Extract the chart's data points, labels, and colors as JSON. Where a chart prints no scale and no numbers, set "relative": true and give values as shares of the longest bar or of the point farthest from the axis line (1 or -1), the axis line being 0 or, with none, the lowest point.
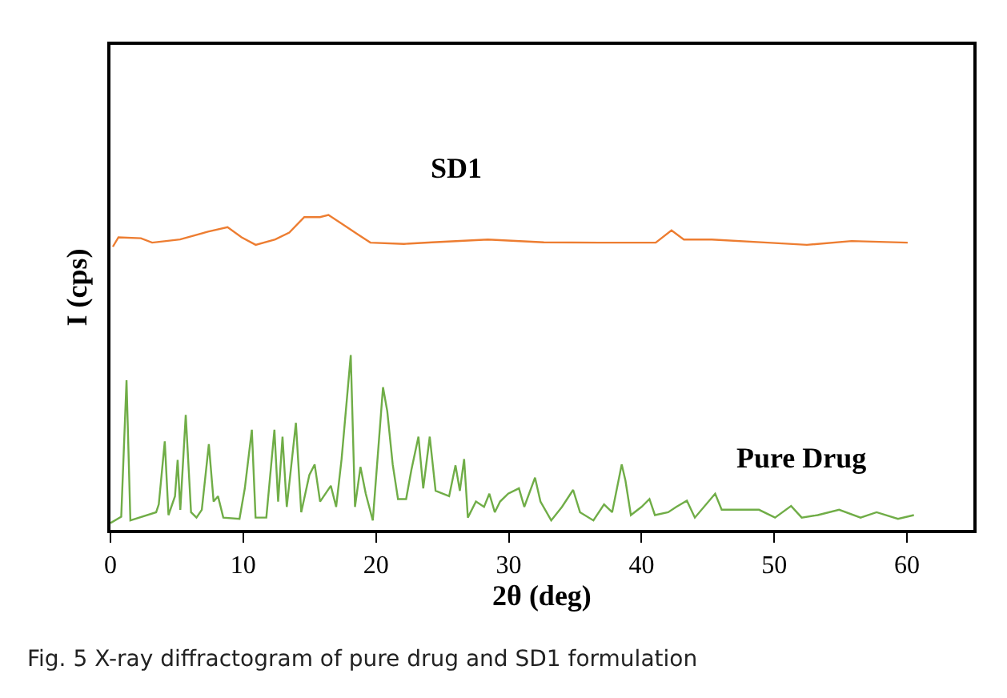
{
  "chart_data": {
    "type": "line",
    "relative": true,
    "xlabel": "2θ (deg)",
    "ylabel": "I (cps)",
    "xlim": [
      0,
      65
    ],
    "xticks": [
      0,
      10,
      20,
      30,
      40,
      50,
      60
    ],
    "tick_labels": "x",
    "legend": false,
    "marker": "none",
    "line_style": "solid",
    "annotations": [
      "Fig. 5 X-ray diffractogram of pure drug and SD1 formulation"
    ],
    "series": [
      {
        "name": "SD1",
        "color": "#ed7d31",
        "x": [
          0.18,
          0.6,
          2.29,
          3.14,
          5.24,
          7.35,
          8.82,
          9.88,
          10.94,
          12.41,
          13.47,
          14.6,
          15.78,
          16.42,
          17.47,
          18.74,
          19.58,
          22.11,
          24.22,
          28.43,
          32.64,
          36.86,
          41.07,
          42.26,
          43.19,
          45.29,
          49.51,
          52.46,
          55.83,
          60.05
        ],
        "values": [
          0.899,
          0.929,
          0.926,
          0.912,
          0.922,
          0.947,
          0.961,
          0.929,
          0.905,
          0.922,
          0.944,
          0.993,
          0.993,
          1.0,
          0.971,
          0.935,
          0.912,
          0.908,
          0.913,
          0.922,
          0.913,
          0.912,
          0.912,
          0.951,
          0.922,
          0.922,
          0.912,
          0.905,
          0.917,
          0.912
        ]
      },
      {
        "name": "Pure Drug",
        "color": "#70ad47",
        "x": [
          0,
          0.81,
          1.21,
          1.5,
          3.44,
          3.64,
          4.09,
          4.37,
          4.86,
          5.06,
          5.26,
          5.67,
          6.07,
          6.48,
          6.88,
          7.41,
          7.77,
          8.1,
          8.5,
          9.72,
          10.12,
          10.65,
          10.93,
          11.74,
          12.35,
          12.63,
          12.96,
          13.28,
          13.97,
          14.37,
          14.98,
          15.38,
          15.79,
          16.6,
          17.0,
          17.41,
          18.1,
          18.42,
          18.83,
          19.23,
          19.76,
          20.53,
          20.85,
          21.26,
          21.66,
          22.27,
          22.67,
          23.2,
          23.56,
          24.05,
          24.49,
          25.51,
          25.99,
          26.32,
          26.64,
          26.92,
          27.53,
          28.14,
          28.54,
          28.95,
          29.35,
          29.96,
          30.77,
          31.17,
          31.98,
          32.39,
          33.2,
          34.01,
          34.85,
          35.37,
          36.38,
          37.18,
          37.79,
          38.51,
          38.79,
          39.2,
          40.0,
          40.6,
          41.01,
          42.01,
          42.62,
          43.42,
          44.02,
          45.55,
          46.04,
          47.65,
          48.85,
          50.06,
          51.27,
          52.07,
          53.28,
          54.89,
          56.5,
          57.71,
          59.32,
          60.52
        ],
        "values": [
          0.022,
          0.042,
          0.475,
          0.03,
          0.056,
          0.081,
          0.281,
          0.047,
          0.107,
          0.222,
          0.064,
          0.365,
          0.056,
          0.039,
          0.064,
          0.272,
          0.09,
          0.107,
          0.039,
          0.035,
          0.132,
          0.318,
          0.039,
          0.039,
          0.318,
          0.09,
          0.296,
          0.073,
          0.34,
          0.056,
          0.174,
          0.208,
          0.09,
          0.14,
          0.073,
          0.225,
          0.555,
          0.073,
          0.2,
          0.115,
          0.03,
          0.453,
          0.377,
          0.208,
          0.098,
          0.098,
          0.191,
          0.296,
          0.132,
          0.296,
          0.124,
          0.107,
          0.205,
          0.124,
          0.225,
          0.039,
          0.09,
          0.073,
          0.115,
          0.056,
          0.09,
          0.115,
          0.132,
          0.073,
          0.166,
          0.09,
          0.03,
          0.073,
          0.127,
          0.056,
          0.03,
          0.081,
          0.056,
          0.208,
          0.157,
          0.047,
          0.073,
          0.098,
          0.047,
          0.056,
          0.073,
          0.093,
          0.039,
          0.115,
          0.064,
          0.064,
          0.064,
          0.039,
          0.076,
          0.039,
          0.047,
          0.064,
          0.039,
          0.056,
          0.035,
          0.047
        ]
      }
    ]
  }
}
